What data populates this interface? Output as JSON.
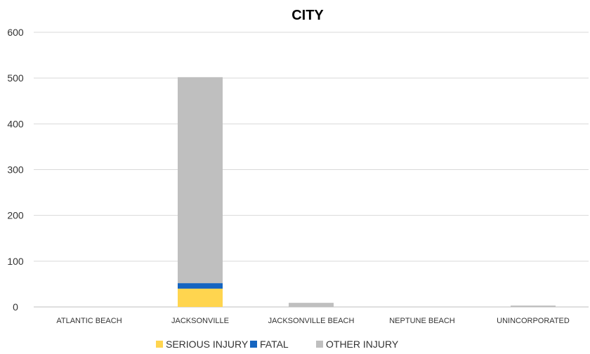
{
  "chart_data": {
    "type": "bar",
    "stacked": true,
    "title": "CITY",
    "categories": [
      "ATLANTIC BEACH",
      "JACKSONVILLE",
      "JACKSONVILLE BEACH",
      "NEPTUNE BEACH",
      "UNINCORPORATED"
    ],
    "series": [
      {
        "name": "SERIOUS INJURY",
        "color": "#FFD54F",
        "values": [
          0,
          40,
          0,
          0,
          0
        ]
      },
      {
        "name": "FATAL",
        "color": "#1565C0",
        "values": [
          0,
          12,
          0,
          0,
          0
        ]
      },
      {
        "name": "OTHER INJURY",
        "color": "#BFBFBF",
        "values": [
          0,
          450,
          9,
          0,
          3
        ]
      }
    ],
    "yticks": [
      0,
      100,
      200,
      300,
      400,
      500,
      600
    ],
    "ylim": [
      0,
      600
    ],
    "grid": true,
    "legend_position": "bottom"
  }
}
